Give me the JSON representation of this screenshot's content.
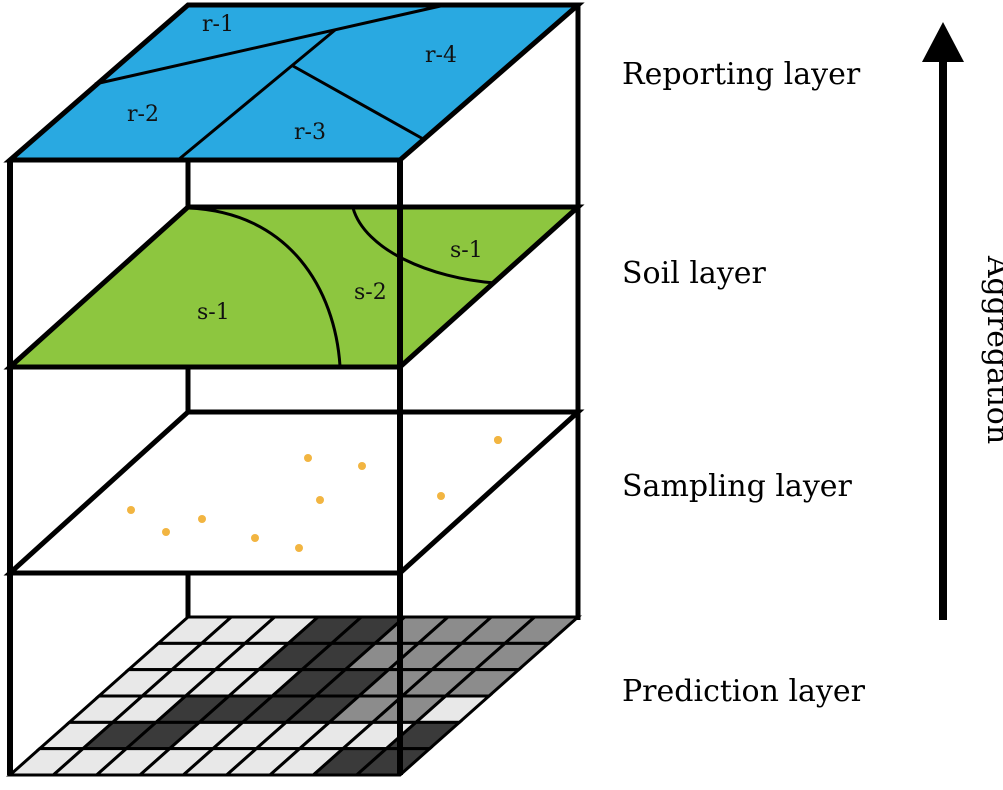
{
  "layers": [
    {
      "id": "reporting",
      "label": "Reporting layer",
      "fill": "#29a9e1",
      "regions": [
        {
          "label": "r-1"
        },
        {
          "label": "r-2"
        },
        {
          "label": "r-3"
        },
        {
          "label": "r-4"
        }
      ]
    },
    {
      "id": "soil",
      "label": "Soil layer",
      "fill": "#8dc63f",
      "regions": [
        {
          "label": "s-1"
        },
        {
          "label": "s-2"
        },
        {
          "label": "s-1"
        }
      ]
    },
    {
      "id": "sampling",
      "label": "Sampling layer",
      "fill": "#ffffff",
      "point_color": "#f2b541",
      "point_count": 11
    },
    {
      "id": "prediction",
      "label": "Prediction layer",
      "grid_colors": {
        "light": "#e8e8e8",
        "medium": "#8c8c8c",
        "dark": "#3a3a3a"
      }
    }
  ],
  "arrow": {
    "label": "Aggregation"
  }
}
